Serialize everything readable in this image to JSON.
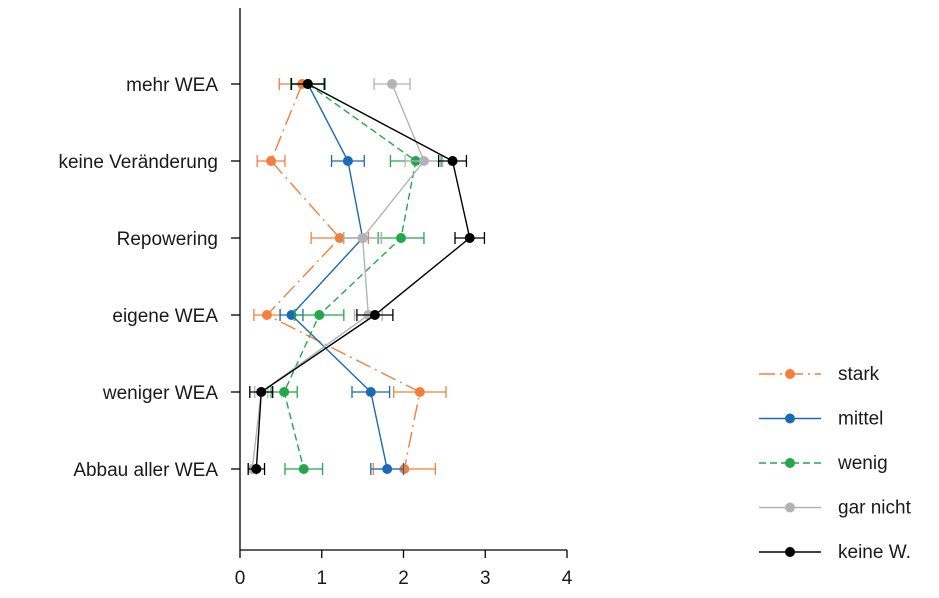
{
  "chart_data": {
    "type": "line",
    "orientation": "horizontal",
    "title": "",
    "xlabel": "",
    "ylabel": "",
    "xlim": [
      0,
      4
    ],
    "x_ticks": [
      0,
      1,
      2,
      3,
      4
    ],
    "x_tick_labels": [
      "0",
      "1",
      "2",
      "3",
      "4"
    ],
    "grid": false,
    "legend_position": "right",
    "categories": [
      "mehr WEA",
      "keine Veränderung",
      "Repowering",
      "eigene WEA",
      "weniger WEA",
      "Abbau aller WEA"
    ],
    "series": [
      {
        "name": "stark",
        "color": "#f47f3c",
        "dash": "dashdot",
        "values": [
          0.76,
          0.38,
          1.22,
          0.33,
          2.2,
          2.01
        ],
        "errors": [
          0.28,
          0.17,
          0.35,
          0.16,
          0.32,
          0.38
        ]
      },
      {
        "name": "mittel",
        "color": "#1a6ab5",
        "dash": "solid",
        "values": [
          0.83,
          1.32,
          1.5,
          0.63,
          1.6,
          1.8
        ],
        "errors": [
          0.21,
          0.2,
          0.23,
          0.14,
          0.23,
          0.2
        ]
      },
      {
        "name": "wenig",
        "color": "#22a84a",
        "dash": "dashed",
        "values": [
          0.83,
          2.15,
          1.97,
          0.97,
          0.54,
          0.78
        ],
        "errors": [
          0.21,
          0.31,
          0.28,
          0.3,
          0.16,
          0.23
        ]
      },
      {
        "name": "gar nicht",
        "color": "#b3b3b3",
        "dash": "solid",
        "values": [
          1.86,
          2.25,
          1.5,
          1.57,
          0.26,
          0.15
        ],
        "errors": [
          0.22,
          0.23,
          0.23,
          0.17,
          0.08,
          0.05
        ]
      },
      {
        "name": "keine W.",
        "color": "#000000",
        "dash": "solid",
        "values": [
          0.83,
          2.6,
          2.81,
          1.65,
          0.26,
          0.2
        ],
        "errors": [
          0.2,
          0.17,
          0.18,
          0.22,
          0.14,
          0.1
        ]
      }
    ]
  }
}
